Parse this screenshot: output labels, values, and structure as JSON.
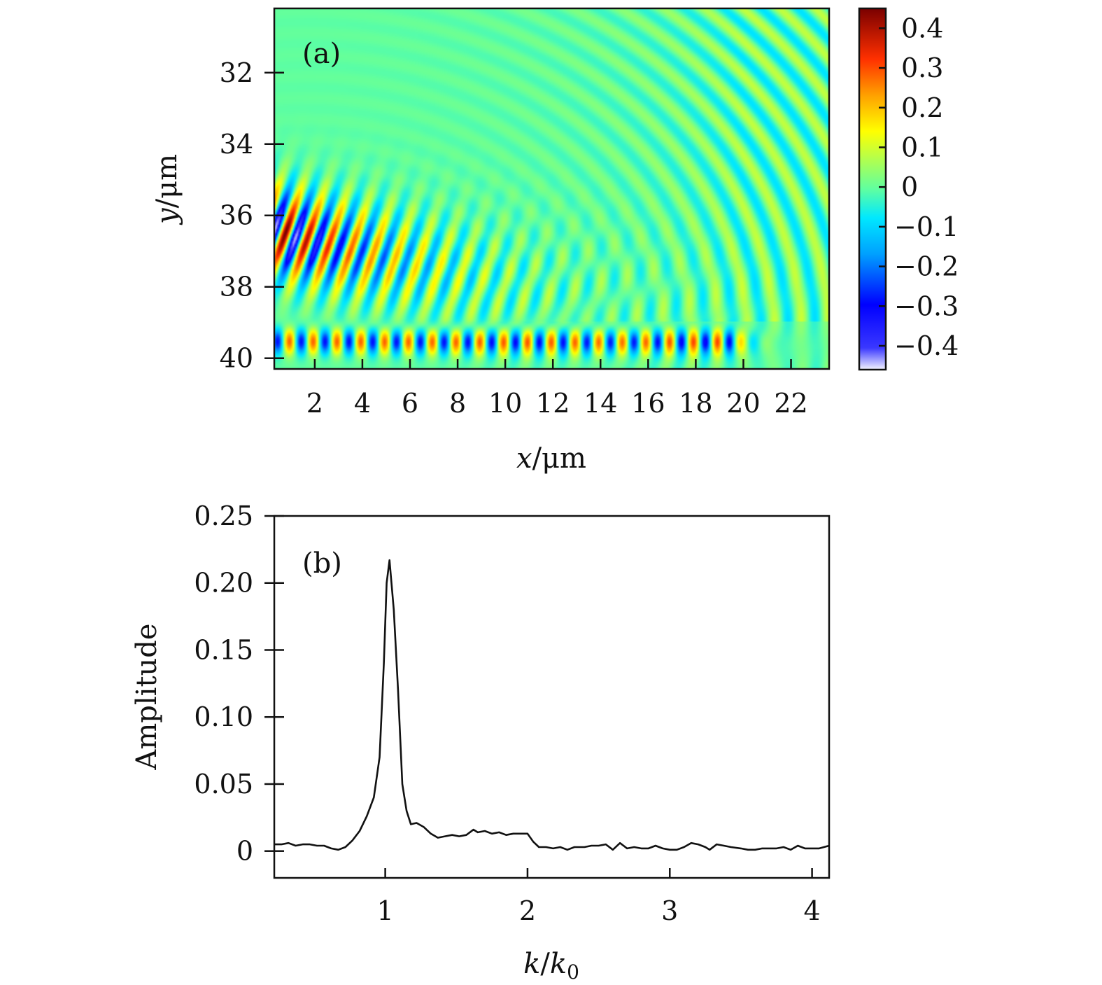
{
  "chart_data": [
    {
      "type": "heatmap",
      "panel_label": "(a)",
      "title": "",
      "xlabel_var": "x",
      "xlabel_unit": "/μm",
      "ylabel_var": "y",
      "ylabel_unit": "/μm",
      "xlim": [
        0.3,
        23.6
      ],
      "ylim": [
        40.3,
        30.2
      ],
      "xticks": [
        2,
        4,
        6,
        8,
        10,
        12,
        14,
        16,
        18,
        20,
        22
      ],
      "xtick_labels": [
        "2",
        "4",
        "6",
        "8",
        "10",
        "12",
        "14",
        "16",
        "18",
        "20",
        "22"
      ],
      "yticks": [
        32,
        34,
        36,
        38,
        40
      ],
      "ytick_labels": [
        "32",
        "34",
        "36",
        "38",
        "40"
      ],
      "colorbar": {
        "range": [
          -0.46,
          0.45
        ],
        "ticks": [
          0.4,
          0.3,
          0.2,
          0.1,
          0,
          -0.1,
          -0.2,
          -0.3,
          -0.4
        ],
        "tick_labels": [
          "0.4",
          "0.3",
          "0.2",
          "0.1",
          "0",
          "−0.1",
          "−0.2",
          "−0.3",
          "−0.4"
        ],
        "colormap": "jet"
      },
      "description": "Oscillating wave field; strongest near left edge (y 34-38) and bottom boundary (y 39-40), decaying to the right; faint curved wavefronts in upper-right."
    },
    {
      "type": "line",
      "panel_label": "(b)",
      "title": "",
      "xlabel_var": "k",
      "xlabel_mid": "/",
      "xlabel_var2": "k",
      "xlabel_sub": "0",
      "ylabel": "Amplitude",
      "xlim": [
        0.22,
        4.12
      ],
      "ylim": [
        -0.02,
        0.25
      ],
      "xticks": [
        1,
        2,
        3,
        4
      ],
      "xtick_labels": [
        "1",
        "2",
        "3",
        "4"
      ],
      "yticks": [
        0,
        0.05,
        0.1,
        0.15,
        0.2,
        0.25
      ],
      "ytick_labels": [
        "0",
        "0.05",
        "0.10",
        "0.15",
        "0.20",
        "0.25"
      ],
      "series": [
        {
          "name": "Amplitude",
          "color": "#111111",
          "x": [
            0.22,
            0.27,
            0.32,
            0.37,
            0.42,
            0.47,
            0.52,
            0.57,
            0.62,
            0.67,
            0.72,
            0.77,
            0.82,
            0.87,
            0.92,
            0.96,
            0.99,
            1.01,
            1.03,
            1.06,
            1.09,
            1.12,
            1.15,
            1.18,
            1.22,
            1.27,
            1.32,
            1.37,
            1.42,
            1.47,
            1.52,
            1.57,
            1.62,
            1.65,
            1.7,
            1.75,
            1.8,
            1.85,
            1.9,
            1.95,
            2.0,
            2.04,
            2.08,
            2.13,
            2.18,
            2.23,
            2.28,
            2.33,
            2.4,
            2.45,
            2.5,
            2.55,
            2.6,
            2.65,
            2.7,
            2.75,
            2.8,
            2.85,
            2.9,
            2.95,
            3.0,
            3.05,
            3.1,
            3.15,
            3.2,
            3.25,
            3.28,
            3.33,
            3.38,
            3.43,
            3.5,
            3.55,
            3.6,
            3.65,
            3.7,
            3.75,
            3.8,
            3.85,
            3.9,
            3.95,
            4.0,
            4.05,
            4.12
          ],
          "values": [
            0.005,
            0.005,
            0.006,
            0.004,
            0.005,
            0.005,
            0.004,
            0.004,
            0.002,
            0.001,
            0.003,
            0.008,
            0.015,
            0.026,
            0.04,
            0.07,
            0.14,
            0.2,
            0.217,
            0.18,
            0.12,
            0.05,
            0.03,
            0.02,
            0.021,
            0.018,
            0.013,
            0.01,
            0.011,
            0.012,
            0.011,
            0.012,
            0.016,
            0.014,
            0.015,
            0.013,
            0.014,
            0.012,
            0.013,
            0.013,
            0.013,
            0.007,
            0.003,
            0.003,
            0.002,
            0.003,
            0.001,
            0.003,
            0.003,
            0.004,
            0.004,
            0.005,
            0.001,
            0.006,
            0.002,
            0.003,
            0.002,
            0.002,
            0.004,
            0.002,
            0.001,
            0.001,
            0.003,
            0.006,
            0.005,
            0.003,
            0.001,
            0.005,
            0.004,
            0.003,
            0.002,
            0.001,
            0.001,
            0.002,
            0.002,
            0.002,
            0.003,
            0.001,
            0.004,
            0.002,
            0.002,
            0.002,
            0.004
          ]
        }
      ]
    }
  ]
}
